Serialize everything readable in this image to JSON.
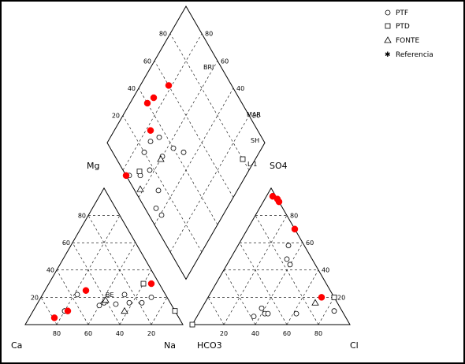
{
  "chart_data": {
    "type": "scatter",
    "subtype": "piper-trilinear",
    "title": "",
    "axes": {
      "cation": {
        "left": "Ca",
        "right": "Na",
        "top": "Mg",
        "ticks": [
          20,
          40,
          60,
          80
        ]
      },
      "anion": {
        "left": "HCO3",
        "right": "Cl",
        "top": "SO4",
        "ticks": [
          20,
          40,
          60,
          80
        ]
      },
      "diamond_ticks": [
        20,
        40,
        60,
        80
      ]
    },
    "legend": {
      "placement": "top-right",
      "entries": [
        {
          "name": "PTF",
          "marker": "circle"
        },
        {
          "name": "PTD",
          "marker": "square"
        },
        {
          "name": "FONTE",
          "marker": "triangle"
        },
        {
          "name": "Referencia",
          "marker": "star"
        }
      ]
    },
    "annotations": [
      "BRI",
      "MAR",
      "SH",
      "L-1",
      "BE"
    ],
    "series": [
      {
        "name": "PTF",
        "cation_points": [
          [
            50,
            15
          ],
          [
            52,
            22
          ],
          [
            58,
            16
          ],
          [
            66,
            16
          ],
          [
            70,
            20
          ],
          [
            20,
            10
          ],
          [
            40,
            14
          ],
          [
            42,
            16
          ],
          [
            22,
            22
          ]
        ],
        "anion_points": [
          [
            36,
            6
          ],
          [
            42,
            8
          ],
          [
            44,
            8
          ],
          [
            38,
            12
          ],
          [
            62,
            8
          ],
          [
            85,
            10
          ],
          [
            32,
            58
          ],
          [
            36,
            48
          ],
          [
            40,
            44
          ]
        ],
        "diamond_points": [
          [
            40,
            56
          ],
          [
            45,
            48
          ],
          [
            35,
            69
          ],
          [
            20,
            73
          ],
          [
            17,
            63
          ],
          [
            9,
            67
          ],
          [
            7,
            45
          ],
          [
            30,
            60
          ],
          [
            15,
            50
          ],
          [
            8,
            39
          ],
          [
            2,
            74
          ],
          [
            28,
            73
          ]
        ]
      },
      {
        "name": "PTD",
        "cation_points": [
          [
            90,
            10
          ],
          [
            60,
            30
          ]
        ],
        "anion_points": [
          [
            0,
            0
          ],
          [
            80,
            20
          ]
        ],
        "diamond_points": [
          [
            80,
            8
          ],
          [
            10,
            69
          ]
        ]
      },
      {
        "name": "FONTE",
        "cation_points": [
          [
            58,
            10
          ],
          [
            42,
            18
          ]
        ],
        "anion_points": [
          [
            70,
            16
          ]
        ],
        "diamond_points": [
          [
            4,
            62
          ],
          [
            28,
            60
          ]
        ]
      },
      {
        "name": "Referencia",
        "cation_points": [
          [
            65,
            30
          ],
          [
            26,
            25
          ],
          [
            22,
            10
          ],
          [
            16,
            5
          ]
        ],
        "anion_points": [
          [
            8,
            92
          ],
          [
            4,
            94
          ],
          [
            72,
            20
          ],
          [
            10,
            90
          ],
          [
            30,
            70
          ]
        ],
        "diamond_points": [
          [
            0,
            76
          ],
          [
            32,
            77
          ],
          [
            46,
            87
          ],
          [
            40,
            89
          ],
          [
            60,
            82
          ]
        ]
      }
    ]
  }
}
